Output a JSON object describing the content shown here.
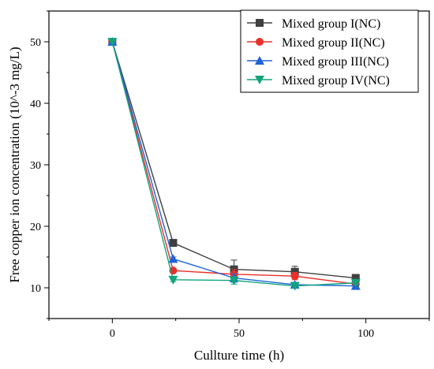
{
  "chart_data": {
    "type": "line",
    "xlabel": "Cullture time (h)",
    "ylabel": "Free copper ion concentration (10^-3 mg/L)",
    "xlim": [
      -25,
      125
    ],
    "ylim": [
      5,
      55
    ],
    "x_ticks": [
      0,
      50,
      100
    ],
    "y_ticks": [
      10,
      20,
      30,
      40,
      50
    ],
    "grid": false,
    "legend_position": "top-right",
    "x": [
      0,
      24,
      48,
      72,
      96
    ],
    "series": [
      {
        "name": "Mixed group I(NC)",
        "color": "#404040",
        "marker": "square",
        "values": [
          50,
          17.3,
          13.0,
          12.6,
          11.6
        ],
        "errors": [
          0,
          0.3,
          1.5,
          0.9,
          0.4
        ]
      },
      {
        "name": "Mixed group II(NC)",
        "color": "#e8302a",
        "marker": "circle",
        "values": [
          50,
          12.8,
          12.2,
          11.9,
          10.6
        ],
        "errors": [
          0,
          0.3,
          0.8,
          0.6,
          0.4
        ]
      },
      {
        "name": "Mixed group III(NC)",
        "color": "#1e63d8",
        "marker": "triangle-up",
        "values": [
          50,
          14.7,
          11.6,
          10.5,
          10.3
        ],
        "errors": [
          0,
          0.3,
          0.7,
          0.4,
          0.3
        ]
      },
      {
        "name": "Mixed group IV(NC)",
        "color": "#12a37d",
        "marker": "triangle-down",
        "values": [
          50,
          11.3,
          11.2,
          10.3,
          10.8
        ],
        "errors": [
          0,
          0.3,
          0.6,
          0.3,
          0.3
        ]
      }
    ]
  }
}
